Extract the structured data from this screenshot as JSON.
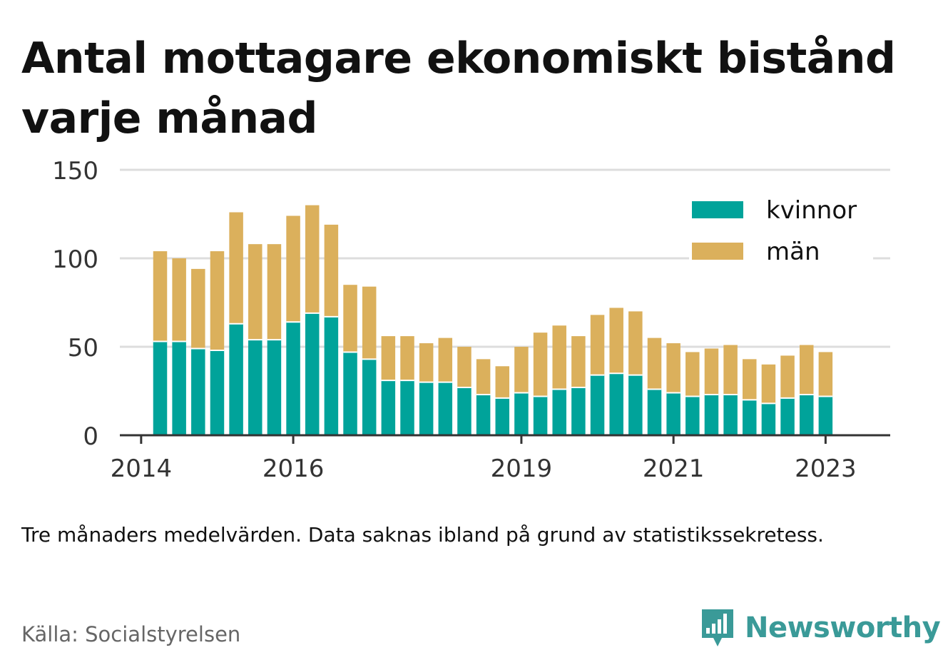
{
  "title": "Antal mottagare ekonomiskt bistånd varje månad",
  "note": "Tre månaders medelvärden. Data saknas ibland på grund av statistikssekretess.",
  "source": "Källa: Socialstyrelsen",
  "brand": "Newsworthy",
  "colors": {
    "kvinnor": "#00a39a",
    "man": "#dbb05c",
    "grid": "#dddddd",
    "axis": "#333333",
    "brand": "#3a9a98"
  },
  "chart_data": {
    "type": "bar",
    "stacked": true,
    "x_start": 2014.25,
    "x_step": 0.25,
    "x_ticks": [
      2014,
      2016,
      2019,
      2021,
      2023
    ],
    "y_ticks": [
      0,
      50,
      100,
      150
    ],
    "ylim": [
      0,
      150
    ],
    "xlim": [
      2013.72,
      2023.85
    ],
    "grid": true,
    "legend_position": "top-right",
    "series": [
      {
        "name": "kvinnor",
        "color": "#00a39a",
        "values": [
          53,
          53,
          49,
          48,
          63,
          54,
          54,
          64,
          69,
          67,
          47,
          43,
          31,
          31,
          30,
          30,
          27,
          23,
          21,
          24,
          22,
          26,
          27,
          34,
          35,
          34,
          26,
          24,
          22,
          23,
          23,
          20,
          18,
          21,
          23,
          22
        ]
      },
      {
        "name": "män",
        "color": "#dbb05c",
        "values": [
          51,
          47,
          45,
          56,
          63,
          54,
          54,
          60,
          61,
          52,
          38,
          41,
          25,
          25,
          22,
          25,
          23,
          20,
          18,
          26,
          36,
          36,
          29,
          34,
          37,
          36,
          29,
          28,
          25,
          26,
          28,
          23,
          22,
          24,
          28,
          25
        ]
      }
    ]
  }
}
